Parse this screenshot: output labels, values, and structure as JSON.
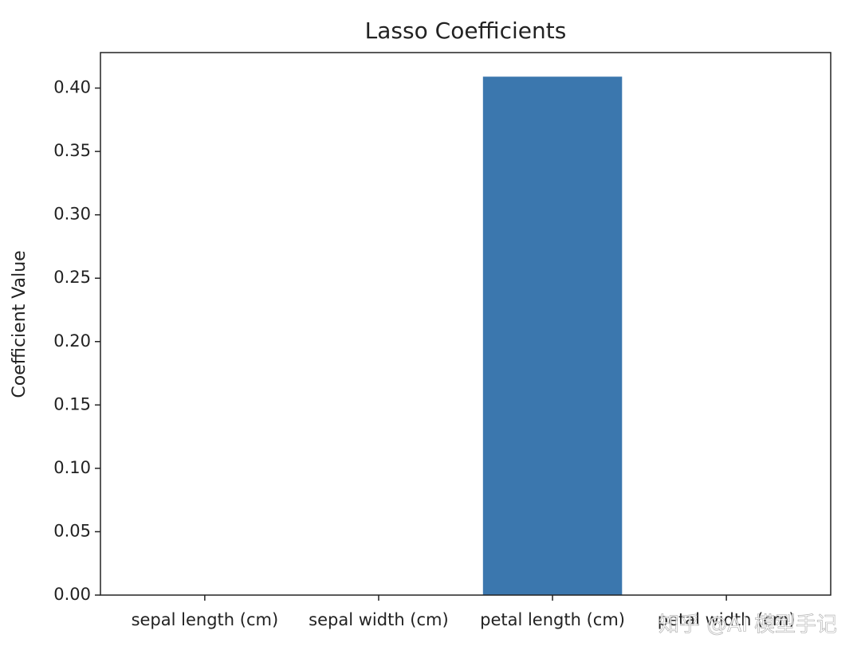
{
  "chart_data": {
    "type": "bar",
    "title": "Lasso Coefficients",
    "y_label": "Coefficient Value",
    "categories": [
      "sepal length (cm)",
      "sepal width (cm)",
      "petal length (cm)",
      "petal width (cm)"
    ],
    "values": [
      0,
      0,
      0.409,
      0
    ],
    "color": "#3b77ae",
    "ylim": [
      0,
      0.428
    ],
    "yticks": [
      {
        "value": 0,
        "label": "0.00"
      },
      0.05,
      {
        "value": 0.1,
        "label": "0.10"
      },
      0.15,
      {
        "value": 0.2,
        "label": "0.20"
      },
      0.25,
      {
        "value": 0.3,
        "label": "0.30"
      },
      0.35,
      {
        "value": 0.4,
        "label": "0.40"
      }
    ],
    "grid": false,
    "watermark": "知乎 @AI 模型手记"
  }
}
